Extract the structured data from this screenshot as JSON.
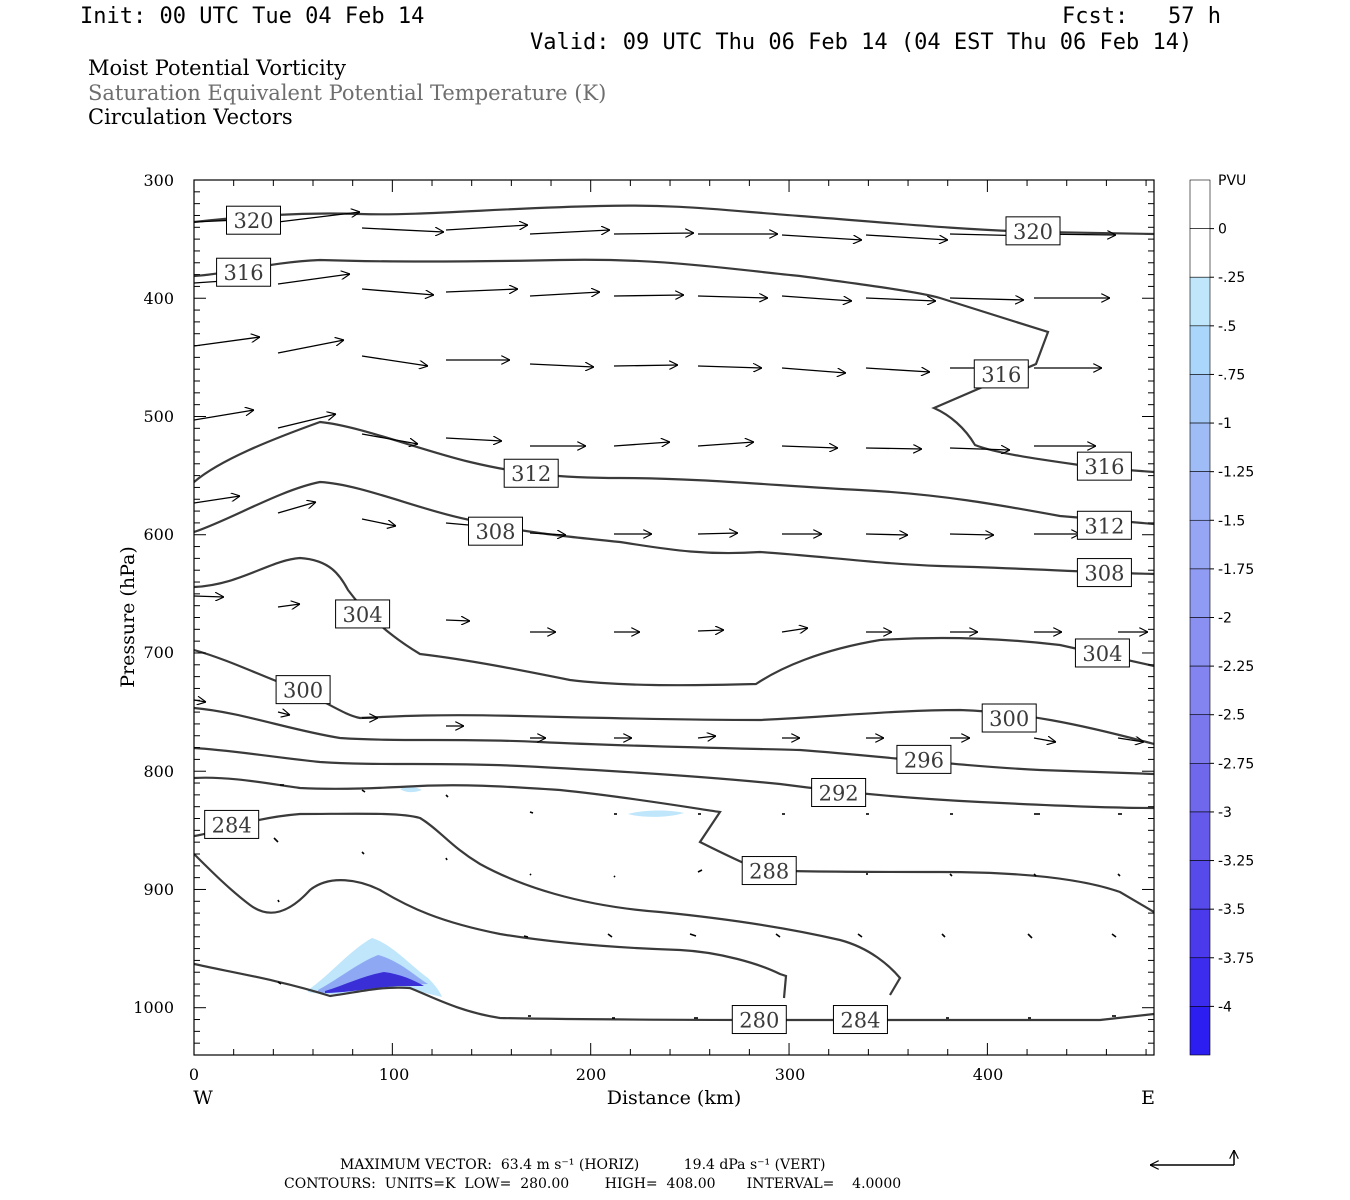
{
  "header": {
    "init": "Init: 00 UTC Tue 04 Feb 14",
    "fcst": "Fcst:   57 h",
    "valid": "Valid: 09 UTC Thu 06 Feb 14 (04 EST Thu 06 Feb 14)"
  },
  "titles": {
    "line1": "Moist Potential Vorticity",
    "line2": "Saturation Equivalent Potential Temperature (K)",
    "line3": "Circulation Vectors"
  },
  "footer": {
    "line1": "MAXIMUM VECTOR:  63.4 m s⁻¹ (HORIZ)          19.4 dPa s⁻¹ (VERT)",
    "line2": "CONTOURS:  UNITS=K  LOW=  280.00        HIGH=  408.00       INTERVAL=    4.0000"
  },
  "colors": {
    "contour": "#3a3a3a",
    "vector": "#000000",
    "shade_light": "#bfe6fb",
    "shade_mid": "#8ea8f4",
    "shade_dark": "#3a2fd6"
  },
  "chart_data": {
    "type": "cross-section",
    "xlabel": "Distance (km)",
    "ylabel": "Pressure (hPa)",
    "xlim": [
      0,
      484
    ],
    "ylim": [
      300,
      1040
    ],
    "x_ticks": [
      "0",
      "100",
      "200",
      "300",
      "400"
    ],
    "y_ticks": [
      "300",
      "400",
      "500",
      "600",
      "700",
      "800",
      "900",
      "1000"
    ],
    "x_end_labels": {
      "left": "W",
      "right": "E"
    },
    "colorbar": {
      "units": "PVU",
      "labels": [
        "0",
        "-.25",
        "-.5",
        "-.75",
        "-1",
        "-1.25",
        "-1.5",
        "-1.75",
        "-2",
        "-2.25",
        "-2.5",
        "-2.75",
        "-3",
        "-3.25",
        "-3.5",
        "-3.75",
        "-4"
      ]
    },
    "contour_labels": [
      {
        "text": "320",
        "x": 30,
        "p": 334
      },
      {
        "text": "320",
        "x": 423,
        "p": 343
      },
      {
        "text": "316",
        "x": 25,
        "p": 378
      },
      {
        "text": "316",
        "x": 407,
        "p": 464
      },
      {
        "text": "316",
        "x": 459,
        "p": 542
      },
      {
        "text": "312",
        "x": 170,
        "p": 548
      },
      {
        "text": "312",
        "x": 459,
        "p": 592
      },
      {
        "text": "308",
        "x": 152,
        "p": 597
      },
      {
        "text": "308",
        "x": 459,
        "p": 632
      },
      {
        "text": "304",
        "x": 85,
        "p": 667
      },
      {
        "text": "304",
        "x": 458,
        "p": 700
      },
      {
        "text": "300",
        "x": 55,
        "p": 731
      },
      {
        "text": "300",
        "x": 411,
        "p": 755
      },
      {
        "text": "296",
        "x": 368,
        "p": 790
      },
      {
        "text": "292",
        "x": 325,
        "p": 818
      },
      {
        "text": "288",
        "x": 290,
        "p": 884
      },
      {
        "text": "284",
        "x": 19,
        "p": 845
      },
      {
        "text": "284",
        "x": 336,
        "p": 1010
      },
      {
        "text": "280",
        "x": 285,
        "p": 1010
      }
    ]
  }
}
